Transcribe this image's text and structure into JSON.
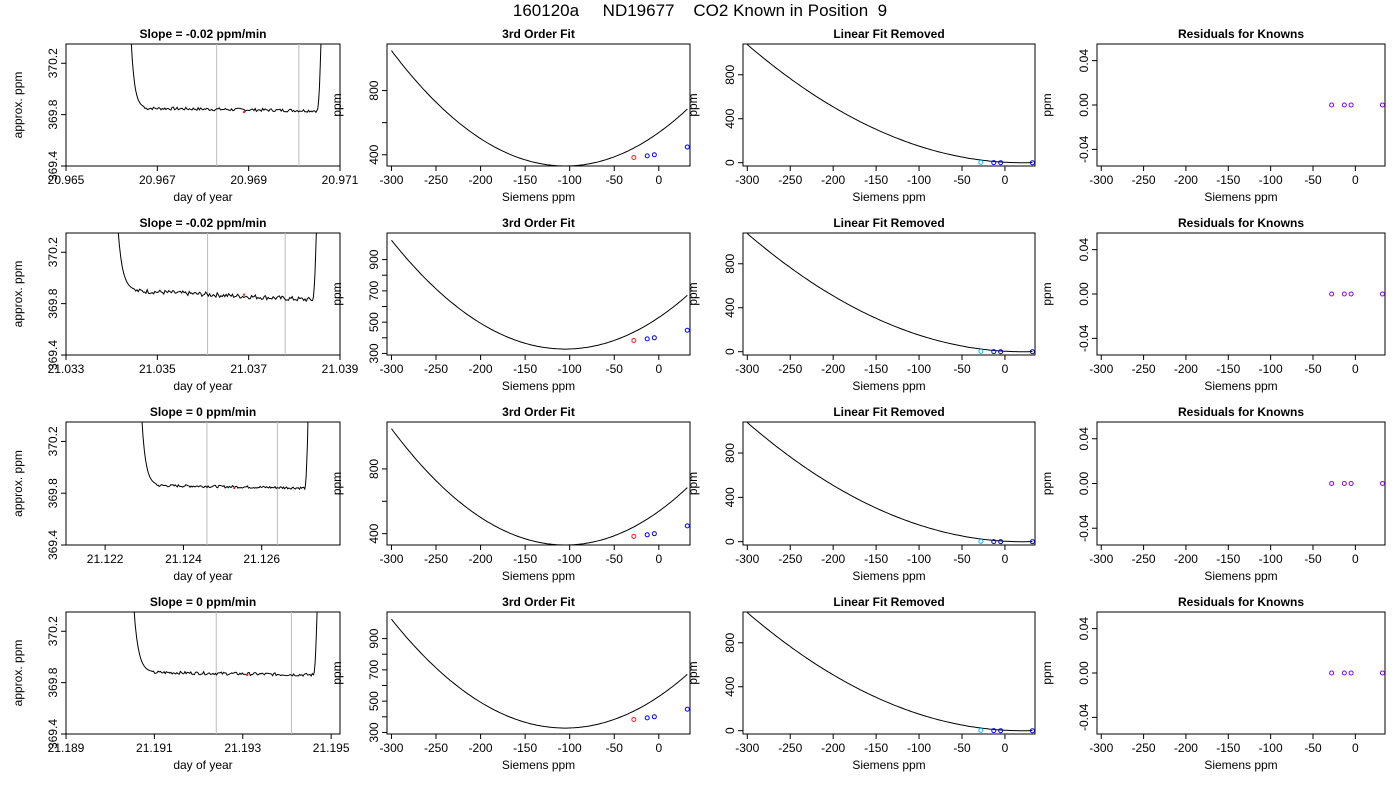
{
  "page": {
    "title": "160120a     ND19677    CO2 Known in Position  9"
  },
  "colors": {
    "axis": "#000000",
    "trace": "#000000",
    "vline": "#bbbbbb",
    "marker_red": "#ff2222",
    "marker_blue": "#0000ff",
    "marker_cyan": "#00bbff",
    "marker_purple": "#8800ff"
  },
  "chart_data": [
    {
      "type": "line",
      "row": 0,
      "col": 0,
      "title": "Slope =  -0.02  ppm/min",
      "xlabel": "day of year",
      "ylabel": "approx. ppm",
      "xlim": [
        20.965,
        20.971
      ],
      "ylim": [
        369.4,
        370.35
      ],
      "xticks": [
        20.965,
        20.967,
        20.969,
        20.971
      ],
      "xtick_labels": [
        "20.965",
        "20.967",
        "20.969",
        "20.971"
      ],
      "yticks": [
        369.4,
        369.8,
        370.2
      ],
      "ytick_labels": [
        "369.4",
        "369.8",
        "370.2"
      ],
      "vlines": [
        20.9683,
        20.9701
      ],
      "red_marker": [
        20.9689,
        369.82
      ],
      "trace": {
        "x_start": 20.9664,
        "x_plateau_start": 20.9667,
        "x_plateau_end": 20.9705,
        "x_end": 20.9706,
        "level_start": 369.85,
        "level_end": 369.83,
        "noise": 0.012
      }
    },
    {
      "type": "line",
      "row": 0,
      "col": 1,
      "title": "3rd Order Fit",
      "xlabel": "Siemens ppm",
      "ylabel": "ppm",
      "xlim": [
        -305,
        35
      ],
      "ylim": [
        330,
        1090
      ],
      "xticks": [
        -300,
        -250,
        -200,
        -150,
        -100,
        -50,
        0
      ],
      "yticks": [
        400,
        600,
        800
      ],
      "ytick_labels": [
        "400",
        "",
        "800"
      ],
      "curve": {
        "vertex_x": -105,
        "vertex_y": 330,
        "a": 0.0189,
        "x_from": -300,
        "x_to": 32
      },
      "points": [
        {
          "x": -28,
          "y": 383,
          "color": "#ff2222"
        },
        {
          "x": -13,
          "y": 393,
          "color": "#0000ff"
        },
        {
          "x": -5,
          "y": 400,
          "color": "#0000ff"
        },
        {
          "x": 32,
          "y": 448,
          "color": "#0000ff"
        }
      ]
    },
    {
      "type": "line",
      "row": 0,
      "col": 2,
      "title": "Linear Fit Removed",
      "xlabel": "Siemens ppm",
      "ylabel": "ppm",
      "xlim": [
        -305,
        35
      ],
      "ylim": [
        -30,
        1080
      ],
      "xticks": [
        -300,
        -250,
        -200,
        -150,
        -100,
        -50,
        0
      ],
      "yticks": [
        0,
        400,
        800
      ],
      "curve": {
        "vertex_x": 20,
        "vertex_y": 0,
        "a": 0.0105,
        "x_from": -300,
        "x_to": 32
      },
      "points": [
        {
          "x": -28,
          "y": 3,
          "color": "#00bbff"
        },
        {
          "x": -13,
          "y": 1,
          "color": "#0000ff"
        },
        {
          "x": -5,
          "y": 0,
          "color": "#0000ff"
        },
        {
          "x": 32,
          "y": 0,
          "color": "#0000ff"
        }
      ]
    },
    {
      "type": "scatter",
      "row": 0,
      "col": 3,
      "title": "Residuals for Knowns",
      "xlabel": "Siemens ppm",
      "ylabel": "ppm",
      "xlim": [
        -305,
        35
      ],
      "ylim": [
        -0.055,
        0.055
      ],
      "xticks": [
        -300,
        -250,
        -200,
        -150,
        -100,
        -50,
        0
      ],
      "yticks": [
        -0.04,
        0.0,
        0.04
      ],
      "ytick_labels": [
        "-0.04",
        "0.00",
        "0.04"
      ],
      "points": [
        {
          "x": -28,
          "y": 0,
          "color": "#8800ff"
        },
        {
          "x": -13,
          "y": 0,
          "color": "#8800ff"
        },
        {
          "x": -5,
          "y": 0,
          "color": "#8800ff"
        },
        {
          "x": 32,
          "y": 0,
          "color": "#8800ff"
        }
      ]
    },
    {
      "type": "line",
      "row": 1,
      "col": 0,
      "title": "Slope =  -0.02  ppm/min",
      "xlabel": "day of year",
      "ylabel": "approx. ppm",
      "xlim": [
        21.033,
        21.039
      ],
      "ylim": [
        369.4,
        370.35
      ],
      "xticks": [
        21.033,
        21.035,
        21.037,
        21.039
      ],
      "xtick_labels": [
        "21.033",
        "21.035",
        "21.037",
        "21.039"
      ],
      "yticks": [
        369.4,
        369.8,
        370.2
      ],
      "ytick_labels": [
        "369.4",
        "369.8",
        "370.2"
      ],
      "vlines": [
        21.0361,
        21.0378
      ],
      "red_marker": [
        21.0369,
        369.87
      ],
      "trace": {
        "x_start": 21.0341,
        "x_plateau_start": 21.0345,
        "x_plateau_end": 21.0384,
        "x_end": 21.0385,
        "level_start": 369.9,
        "level_end": 369.83,
        "noise": 0.018
      }
    },
    {
      "type": "line",
      "row": 1,
      "col": 1,
      "title": "3rd Order Fit",
      "xlabel": "Siemens ppm",
      "ylabel": "ppm",
      "xlim": [
        -305,
        35
      ],
      "ylim": [
        290,
        1070
      ],
      "xticks": [
        -300,
        -250,
        -200,
        -150,
        -100,
        -50,
        0
      ],
      "yticks": [
        300,
        400,
        500,
        600,
        700,
        800,
        900
      ],
      "ytick_labels": [
        "300",
        "",
        "500",
        "",
        "700",
        "",
        "900"
      ],
      "curve": {
        "vertex_x": -105,
        "vertex_y": 328,
        "a": 0.0183,
        "x_from": -300,
        "x_to": 32
      },
      "points": [
        {
          "x": -28,
          "y": 383,
          "color": "#ff2222"
        },
        {
          "x": -13,
          "y": 393,
          "color": "#0000ff"
        },
        {
          "x": -5,
          "y": 400,
          "color": "#0000ff"
        },
        {
          "x": 32,
          "y": 448,
          "color": "#0000ff"
        }
      ]
    },
    {
      "type": "line",
      "row": 1,
      "col": 2,
      "title": "Linear Fit Removed",
      "xlabel": "Siemens ppm",
      "ylabel": "ppm",
      "xlim": [
        -305,
        35
      ],
      "ylim": [
        -30,
        1080
      ],
      "xticks": [
        -300,
        -250,
        -200,
        -150,
        -100,
        -50,
        0
      ],
      "yticks": [
        0,
        400,
        800
      ],
      "curve": {
        "vertex_x": 20,
        "vertex_y": 0,
        "a": 0.0105,
        "x_from": -300,
        "x_to": 32
      },
      "points": [
        {
          "x": -28,
          "y": 3,
          "color": "#00bbff"
        },
        {
          "x": -13,
          "y": 1,
          "color": "#0000ff"
        },
        {
          "x": -5,
          "y": 0,
          "color": "#0000ff"
        },
        {
          "x": 32,
          "y": 0,
          "color": "#0000ff"
        }
      ]
    },
    {
      "type": "scatter",
      "row": 1,
      "col": 3,
      "title": "Residuals for Knowns",
      "xlabel": "Siemens ppm",
      "ylabel": "ppm",
      "xlim": [
        -305,
        35
      ],
      "ylim": [
        -0.055,
        0.055
      ],
      "xticks": [
        -300,
        -250,
        -200,
        -150,
        -100,
        -50,
        0
      ],
      "yticks": [
        -0.04,
        0.0,
        0.04
      ],
      "ytick_labels": [
        "-0.04",
        "0.00",
        "0.04"
      ],
      "points": [
        {
          "x": -28,
          "y": 0,
          "color": "#8800ff"
        },
        {
          "x": -13,
          "y": 0,
          "color": "#8800ff"
        },
        {
          "x": -5,
          "y": 0,
          "color": "#8800ff"
        },
        {
          "x": 32,
          "y": 0,
          "color": "#8800ff"
        }
      ]
    },
    {
      "type": "line",
      "row": 2,
      "col": 0,
      "title": "Slope =  0  ppm/min",
      "xlabel": "day of year",
      "ylabel": "approx. ppm",
      "xlim": [
        21.121,
        21.128
      ],
      "ylim": [
        369.4,
        370.35
      ],
      "xticks": [
        21.122,
        21.124,
        21.126
      ],
      "xtick_labels": [
        "21.122",
        "21.124",
        "21.126"
      ],
      "yticks": [
        369.4,
        369.8,
        370.2
      ],
      "ytick_labels": [
        "369.4",
        "369.8",
        "370.2"
      ],
      "vlines": [
        21.1246,
        21.1264
      ],
      "red_marker": [
        21.1253,
        369.84
      ],
      "trace": {
        "x_start": 21.1229,
        "x_plateau_start": 21.1233,
        "x_plateau_end": 21.1271,
        "x_end": 21.1272,
        "level_start": 369.86,
        "level_end": 369.84,
        "noise": 0.01
      }
    },
    {
      "type": "line",
      "row": 2,
      "col": 1,
      "title": "3rd Order Fit",
      "xlabel": "Siemens ppm",
      "ylabel": "ppm",
      "xlim": [
        -305,
        35
      ],
      "ylim": [
        330,
        1090
      ],
      "xticks": [
        -300,
        -250,
        -200,
        -150,
        -100,
        -50,
        0
      ],
      "yticks": [
        400,
        600,
        800
      ],
      "ytick_labels": [
        "400",
        "",
        "800"
      ],
      "curve": {
        "vertex_x": -105,
        "vertex_y": 330,
        "a": 0.0189,
        "x_from": -300,
        "x_to": 32
      },
      "points": [
        {
          "x": -28,
          "y": 383,
          "color": "#ff2222"
        },
        {
          "x": -13,
          "y": 393,
          "color": "#0000ff"
        },
        {
          "x": -5,
          "y": 400,
          "color": "#0000ff"
        },
        {
          "x": 32,
          "y": 448,
          "color": "#0000ff"
        }
      ]
    },
    {
      "type": "line",
      "row": 2,
      "col": 2,
      "title": "Linear Fit Removed",
      "xlabel": "Siemens ppm",
      "ylabel": "ppm",
      "xlim": [
        -305,
        35
      ],
      "ylim": [
        -30,
        1080
      ],
      "xticks": [
        -300,
        -250,
        -200,
        -150,
        -100,
        -50,
        0
      ],
      "yticks": [
        0,
        400,
        800
      ],
      "curve": {
        "vertex_x": 20,
        "vertex_y": 0,
        "a": 0.0105,
        "x_from": -300,
        "x_to": 32
      },
      "points": [
        {
          "x": -28,
          "y": 3,
          "color": "#00bbff"
        },
        {
          "x": -13,
          "y": 1,
          "color": "#0000ff"
        },
        {
          "x": -5,
          "y": 0,
          "color": "#0000ff"
        },
        {
          "x": 32,
          "y": 0,
          "color": "#0000ff"
        }
      ]
    },
    {
      "type": "scatter",
      "row": 2,
      "col": 3,
      "title": "Residuals for Knowns",
      "xlabel": "Siemens ppm",
      "ylabel": "ppm",
      "xlim": [
        -305,
        35
      ],
      "ylim": [
        -0.055,
        0.055
      ],
      "xticks": [
        -300,
        -250,
        -200,
        -150,
        -100,
        -50,
        0
      ],
      "yticks": [
        -0.04,
        0.0,
        0.04
      ],
      "ytick_labels": [
        "-0.04",
        "0.00",
        "0.04"
      ],
      "points": [
        {
          "x": -28,
          "y": 0,
          "color": "#8800ff"
        },
        {
          "x": -13,
          "y": 0,
          "color": "#8800ff"
        },
        {
          "x": -5,
          "y": 0,
          "color": "#8800ff"
        },
        {
          "x": 32,
          "y": 0,
          "color": "#8800ff"
        }
      ]
    },
    {
      "type": "line",
      "row": 3,
      "col": 0,
      "title": "Slope =  0  ppm/min",
      "xlabel": "day of year",
      "ylabel": "approx. ppm",
      "xlim": [
        21.189,
        21.1952
      ],
      "ylim": [
        369.4,
        370.35
      ],
      "xticks": [
        21.189,
        21.191,
        21.193,
        21.195
      ],
      "xtick_labels": [
        "21.189",
        "21.191",
        "21.193",
        "21.195"
      ],
      "yticks": [
        369.4,
        369.8,
        370.2
      ],
      "ytick_labels": [
        "369.4",
        "369.8",
        "370.2"
      ],
      "vlines": [
        21.1924,
        21.1941
      ],
      "red_marker": [
        21.1931,
        369.86
      ],
      "trace": {
        "x_start": 21.1905,
        "x_plateau_start": 21.1909,
        "x_plateau_end": 21.1946,
        "x_end": 21.1947,
        "level_start": 369.88,
        "level_end": 369.86,
        "noise": 0.012
      }
    },
    {
      "type": "line",
      "row": 3,
      "col": 1,
      "title": "3rd Order Fit",
      "xlabel": "Siemens ppm",
      "ylabel": "ppm",
      "xlim": [
        -305,
        35
      ],
      "ylim": [
        290,
        1070
      ],
      "xticks": [
        -300,
        -250,
        -200,
        -150,
        -100,
        -50,
        0
      ],
      "yticks": [
        300,
        400,
        500,
        600,
        700,
        800,
        900
      ],
      "ytick_labels": [
        "300",
        "",
        "500",
        "",
        "700",
        "",
        "900"
      ],
      "curve": {
        "vertex_x": -105,
        "vertex_y": 328,
        "a": 0.0183,
        "x_from": -300,
        "x_to": 32
      },
      "points": [
        {
          "x": -28,
          "y": 383,
          "color": "#ff2222"
        },
        {
          "x": -13,
          "y": 393,
          "color": "#0000ff"
        },
        {
          "x": -5,
          "y": 400,
          "color": "#0000ff"
        },
        {
          "x": 32,
          "y": 448,
          "color": "#0000ff"
        }
      ]
    },
    {
      "type": "line",
      "row": 3,
      "col": 2,
      "title": "Linear Fit Removed",
      "xlabel": "Siemens ppm",
      "ylabel": "ppm",
      "xlim": [
        -305,
        35
      ],
      "ylim": [
        -30,
        1080
      ],
      "xticks": [
        -300,
        -250,
        -200,
        -150,
        -100,
        -50,
        0
      ],
      "yticks": [
        0,
        400,
        800
      ],
      "curve": {
        "vertex_x": 20,
        "vertex_y": 0,
        "a": 0.0105,
        "x_from": -300,
        "x_to": 32
      },
      "points": [
        {
          "x": -28,
          "y": 3,
          "color": "#00bbff"
        },
        {
          "x": -13,
          "y": 1,
          "color": "#0000ff"
        },
        {
          "x": -5,
          "y": 0,
          "color": "#0000ff"
        },
        {
          "x": 32,
          "y": 0,
          "color": "#0000ff"
        }
      ]
    },
    {
      "type": "scatter",
      "row": 3,
      "col": 3,
      "title": "Residuals for Knowns",
      "xlabel": "Siemens ppm",
      "ylabel": "ppm",
      "xlim": [
        -305,
        35
      ],
      "ylim": [
        -0.055,
        0.055
      ],
      "xticks": [
        -300,
        -250,
        -200,
        -150,
        -100,
        -50,
        0
      ],
      "yticks": [
        -0.04,
        0.0,
        0.04
      ],
      "ytick_labels": [
        "-0.04",
        "0.00",
        "0.04"
      ],
      "points": [
        {
          "x": -28,
          "y": 0,
          "color": "#8800ff"
        },
        {
          "x": -13,
          "y": 0,
          "color": "#8800ff"
        },
        {
          "x": -5,
          "y": 0,
          "color": "#8800ff"
        },
        {
          "x": 32,
          "y": 0,
          "color": "#8800ff"
        }
      ]
    }
  ]
}
